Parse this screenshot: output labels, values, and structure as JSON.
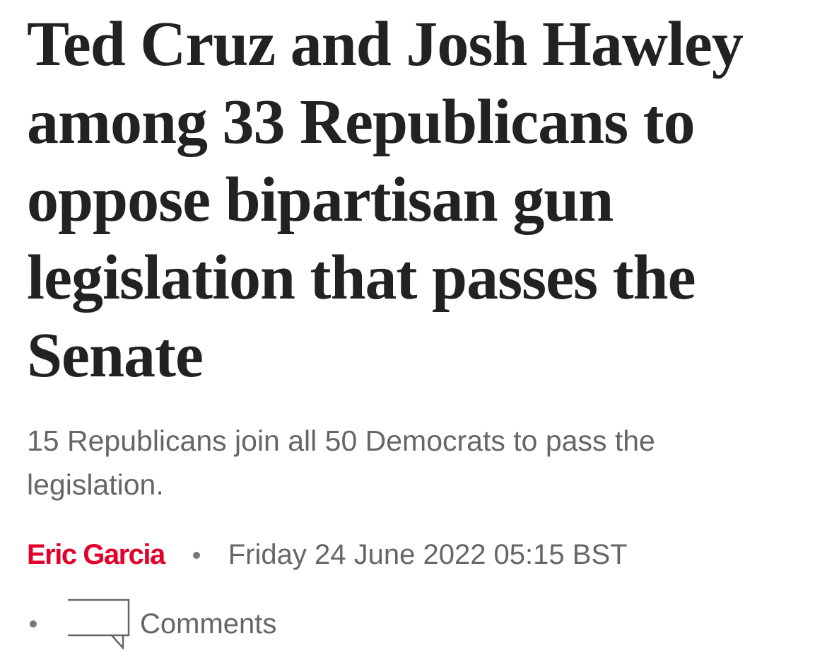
{
  "article": {
    "headline": "Ted Cruz and Josh Hawley among 33 Republicans to oppose bipartisan gun legislation that passes the Senate",
    "standfirst": "15 Republicans join all 50 Democrats to pass the legislation.",
    "author": "Eric Garcia",
    "published": "Friday 24 June 2022 05:15 BST",
    "comments": "Comments"
  }
}
